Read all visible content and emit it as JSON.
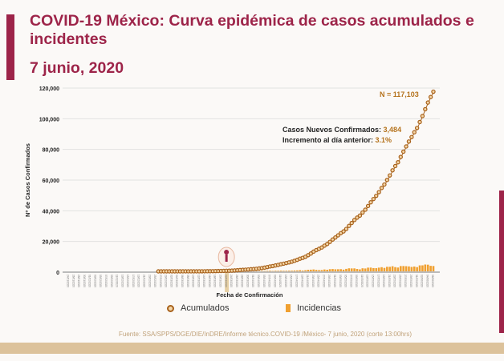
{
  "title": "COVID-19 México: Curva epidémica de casos acumulados e incidentes",
  "subtitle": "7 junio, 2020",
  "source": "Fuente: SSA/SPPS/DGE/DIE/InDRE/Informe técnico.COVID-19 /México- 7 junio, 2020 (corte 13:00hrs)",
  "colors": {
    "brand": "#9d2449",
    "accumulated": "#a8621c",
    "incidence": "#f0a030",
    "band": "#dcc29b"
  },
  "annotations": {
    "total_label": "N = 117,103",
    "new_cases_label": "Casos Nuevos Confirmados:",
    "new_cases_value": "3,484",
    "increase_label": "Incremento al día anterior:",
    "increase_value": "3.1%"
  },
  "chart_data": {
    "type": "line",
    "xlabel": "Fecha de Confirmación",
    "ylabel": "Nº de Casos Confirmados",
    "ylim": [
      0,
      120000
    ],
    "xlim": [
      "2020-01-24",
      "2020-06-07"
    ],
    "yticks": [
      "0",
      "20,000",
      "40,000",
      "60,000",
      "80,000",
      "100,000",
      "120,000"
    ],
    "grid": true,
    "legend_placement": "bottom",
    "x_tick_labels": [
      "24/01/2020",
      "26/01/2020",
      "28/01/2020",
      "30/01/2020",
      "01/02/2020",
      "03/02/2020",
      "05/02/2020",
      "07/02/2020",
      "09/02/2020",
      "11/02/2020",
      "13/02/2020",
      "15/02/2020",
      "17/02/2020",
      "19/02/2020",
      "21/02/2020",
      "23/02/2020",
      "25/02/2020",
      "27/02/2020",
      "29/02/2020",
      "02/03/2020",
      "04/03/2020",
      "06/03/2020",
      "08/03/2020",
      "10/03/2020",
      "12/03/2020",
      "14/03/2020",
      "16/03/2020",
      "18/03/2020",
      "20/03/2020",
      "22/03/2020",
      "24/03/2020",
      "26/03/2020",
      "28/03/2020",
      "30/03/2020",
      "01/04/2020",
      "03/04/2020",
      "05/04/2020",
      "07/04/2020",
      "09/04/2020",
      "11/04/2020",
      "13/04/2020",
      "15/04/2020",
      "17/04/2020",
      "19/04/2020",
      "21/04/2020",
      "23/04/2020",
      "25/04/2020",
      "27/04/2020",
      "29/04/2020",
      "01/05/2020",
      "03/05/2020",
      "05/05/2020",
      "07/05/2020",
      "09/05/2020",
      "11/05/2020",
      "13/05/2020",
      "15/05/2020",
      "17/05/2020",
      "19/05/2020",
      "21/05/2020",
      "23/05/2020",
      "25/05/2020",
      "27/05/2020",
      "29/05/2020",
      "31/05/2020",
      "02/06/2020",
      "04/06/2020",
      "06/06/2020"
    ],
    "x_start": "2020-02-27",
    "series": [
      {
        "name": "Acumulados",
        "values": [
          1,
          2,
          4,
          5,
          5,
          5,
          5,
          5,
          6,
          7,
          7,
          7,
          7,
          8,
          12,
          26,
          41,
          53,
          82,
          93,
          118,
          164,
          203,
          251,
          316,
          367,
          405,
          475,
          585,
          717,
          848,
          993,
          1094,
          1215,
          1378,
          1510,
          1688,
          1890,
          2143,
          2439,
          2785,
          3181,
          3441,
          3844,
          4219,
          4661,
          5014,
          5399,
          5847,
          6297,
          6875,
          7497,
          8261,
          8772,
          9501,
          10544,
          11633,
          12872,
          13842,
          14677,
          15529,
          16752,
          17799,
          19224,
          20739,
          22088,
          23471,
          24905,
          26025,
          27634,
          29616,
          31522,
          33460,
          35022,
          36327,
          38324,
          40186,
          42595,
          45032,
          47144,
          49219,
          51633,
          54346,
          56594,
          59567,
          62527,
          65856,
          68620,
          71105,
          74560,
          78023,
          81400,
          84627,
          87512,
          90664,
          93435,
          97326,
          101238,
          105680,
          110026,
          113619,
          117103
        ]
      },
      {
        "name": "Incidencias",
        "values": [
          1,
          1,
          2,
          1,
          0,
          0,
          0,
          0,
          1,
          1,
          0,
          0,
          0,
          1,
          4,
          14,
          15,
          12,
          29,
          11,
          25,
          46,
          39,
          48,
          65,
          51,
          38,
          70,
          110,
          132,
          131,
          145,
          101,
          121,
          163,
          132,
          178,
          202,
          253,
          296,
          346,
          396,
          260,
          403,
          375,
          442,
          353,
          385,
          448,
          450,
          578,
          622,
          764,
          511,
          729,
          1043,
          1089,
          1239,
          970,
          835,
          852,
          1223,
          1047,
          1425,
          1515,
          1349,
          1383,
          1434,
          1120,
          1609,
          1982,
          1906,
          1938,
          1562,
          1305,
          1997,
          1862,
          2409,
          2437,
          2112,
          2075,
          2414,
          2713,
          2248,
          2973,
          2960,
          3329,
          2764,
          2485,
          3455,
          3463,
          3377,
          3227,
          2885,
          3152,
          2771,
          3891,
          3912,
          4442,
          4346,
          3593,
          3484
        ]
      }
    ]
  }
}
